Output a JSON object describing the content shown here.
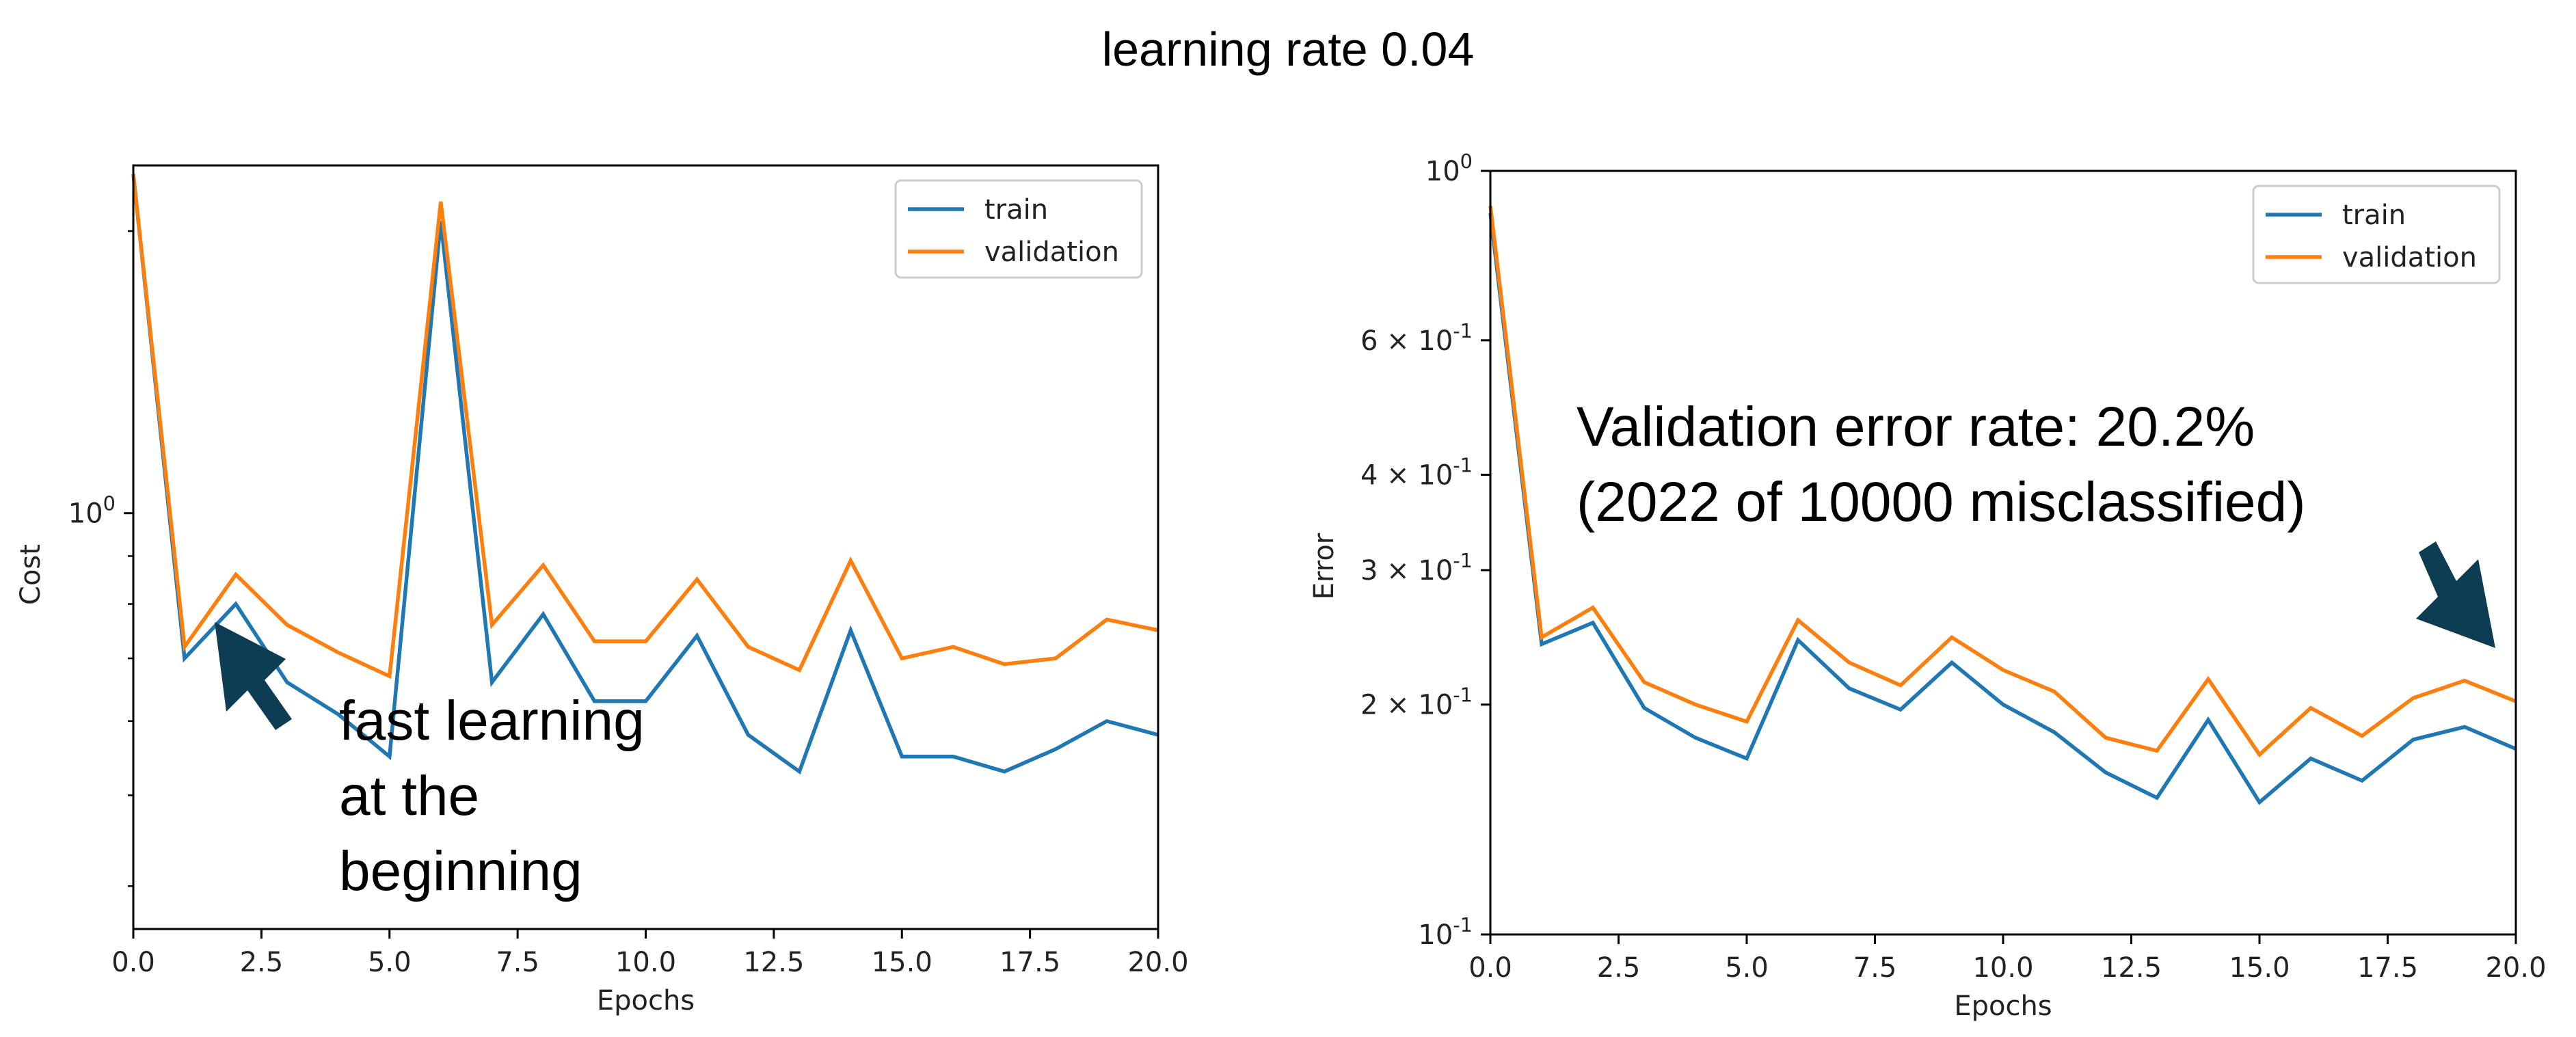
{
  "page": {
    "title": "learning rate 0.04",
    "annotation_left": [
      "fast learning",
      "at the",
      "beginning"
    ],
    "annotation_right": [
      "Validation error rate: 20.2%",
      "(2022 of 10000 misclassified)"
    ],
    "arrow_color": "#0d3d52"
  },
  "chart_data": [
    {
      "type": "line",
      "xlabel": "Epochs",
      "ylabel": "Cost",
      "yscale": "log",
      "xlim": [
        0,
        20
      ],
      "xticks": [
        0,
        2.5,
        5,
        7.5,
        10,
        12.5,
        15,
        17.5,
        20
      ],
      "xticklabels": [
        "0.0",
        "2.5",
        "5.0",
        "7.5",
        "10.0",
        "12.5",
        "15.0",
        "17.5",
        "20.0"
      ],
      "yticks": [
        {
          "value": 1,
          "label": "10^0"
        }
      ],
      "legend": "top-right",
      "grid": false,
      "x": [
        0,
        1,
        2,
        3,
        4,
        5,
        6,
        7,
        8,
        9,
        10,
        11,
        12,
        13,
        14,
        15,
        16,
        17,
        18,
        19,
        20
      ],
      "series": [
        {
          "name": "train",
          "color": "#1f77b4",
          "values": [
            2.3,
            0.7,
            0.8,
            0.66,
            0.61,
            0.55,
            2.05,
            0.66,
            0.78,
            0.63,
            0.63,
            0.74,
            0.58,
            0.53,
            0.75,
            0.55,
            0.55,
            0.53,
            0.56,
            0.6,
            0.58
          ]
        },
        {
          "name": "validation",
          "color": "#ff7f0e",
          "values": [
            2.3,
            0.72,
            0.86,
            0.76,
            0.71,
            0.67,
            2.15,
            0.76,
            0.88,
            0.73,
            0.73,
            0.85,
            0.72,
            0.68,
            0.89,
            0.7,
            0.72,
            0.69,
            0.7,
            0.77,
            0.75
          ]
        }
      ]
    },
    {
      "type": "line",
      "xlabel": "Epochs",
      "ylabel": "Error",
      "yscale": "log",
      "xlim": [
        0,
        20
      ],
      "ylim": [
        0.1,
        1.0
      ],
      "xticks": [
        0,
        2.5,
        5,
        7.5,
        10,
        12.5,
        15,
        17.5,
        20
      ],
      "xticklabels": [
        "0.0",
        "2.5",
        "5.0",
        "7.5",
        "10.0",
        "12.5",
        "15.0",
        "17.5",
        "20.0"
      ],
      "yticks": [
        {
          "value": 1.0,
          "label": "10^0"
        },
        {
          "value": 0.6,
          "label": "6 × 10^-1"
        },
        {
          "value": 0.4,
          "label": "4 × 10^-1"
        },
        {
          "value": 0.3,
          "label": "3 × 10^-1"
        },
        {
          "value": 0.2,
          "label": "2 × 10^-1"
        },
        {
          "value": 0.1,
          "label": "10^-1"
        }
      ],
      "legend": "top-right",
      "grid": false,
      "x": [
        0,
        1,
        2,
        3,
        4,
        5,
        6,
        7,
        8,
        9,
        10,
        11,
        12,
        13,
        14,
        15,
        16,
        17,
        18,
        19,
        20
      ],
      "series": [
        {
          "name": "train",
          "color": "#1f77b4",
          "values": [
            0.88,
            0.24,
            0.256,
            0.198,
            0.181,
            0.17,
            0.243,
            0.21,
            0.197,
            0.227,
            0.2,
            0.184,
            0.163,
            0.151,
            0.191,
            0.149,
            0.17,
            0.159,
            0.18,
            0.187,
            0.175
          ]
        },
        {
          "name": "validation",
          "color": "#ff7f0e",
          "values": [
            0.9,
            0.245,
            0.268,
            0.214,
            0.2,
            0.19,
            0.258,
            0.227,
            0.212,
            0.245,
            0.222,
            0.208,
            0.181,
            0.174,
            0.216,
            0.172,
            0.198,
            0.182,
            0.204,
            0.215,
            0.202
          ]
        }
      ]
    }
  ]
}
